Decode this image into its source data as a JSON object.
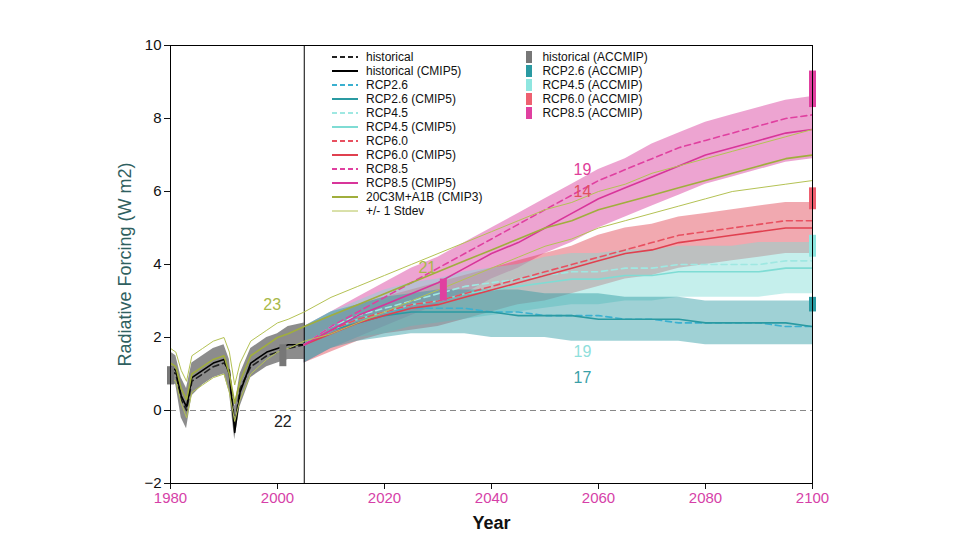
{
  "chart_data": {
    "type": "line",
    "x_label": "Year",
    "y_label": "Radiative Forcing (W m2)",
    "xlim": [
      1980,
      2100
    ],
    "xticks": [
      1980,
      2000,
      2020,
      2040,
      2060,
      2080,
      2100
    ],
    "ylim": [
      -2,
      10
    ],
    "yticks": [
      -2,
      0,
      2,
      4,
      6,
      8,
      10
    ],
    "grid": false,
    "legend": "top-left",
    "reference_lines": {
      "x": [
        2005
      ],
      "y": [
        0
      ]
    },
    "x": [
      1980,
      1981,
      1982,
      1983,
      1984,
      1986,
      1988,
      1990,
      1991,
      1992,
      1993,
      1995,
      1998,
      2000,
      2002,
      2005,
      2010,
      2015,
      2020,
      2025,
      2030,
      2035,
      2040,
      2045,
      2050,
      2055,
      2060,
      2065,
      2070,
      2075,
      2080,
      2085,
      2090,
      2095,
      2100
    ],
    "series": [
      {
        "name": "historical",
        "color": "#222222",
        "line_style": "dashed",
        "values": [
          1.1,
          1.0,
          0.3,
          0.0,
          0.8,
          1.0,
          1.2,
          1.3,
          1.1,
          -0.4,
          0.6,
          1.2,
          1.5,
          1.6,
          1.7,
          1.8,
          null,
          null,
          null,
          null,
          null,
          null,
          null,
          null,
          null,
          null,
          null,
          null,
          null,
          null,
          null,
          null,
          null,
          null,
          null
        ]
      },
      {
        "name": "historical (CMIP5)",
        "color": "#000000",
        "line_style": "solid",
        "values": [
          1.2,
          1.1,
          0.4,
          0.1,
          0.9,
          1.1,
          1.3,
          1.4,
          1.0,
          -0.6,
          0.5,
          1.3,
          1.6,
          1.7,
          1.8,
          1.8,
          null,
          null,
          null,
          null,
          null,
          null,
          null,
          null,
          null,
          null,
          null,
          null,
          null,
          null,
          null,
          null,
          null,
          null,
          null
        ],
        "lower": [
          0.8,
          0.7,
          -0.2,
          -0.5,
          0.4,
          0.7,
          0.9,
          1.0,
          0.5,
          -0.8,
          0.1,
          0.9,
          1.2,
          1.3,
          1.4,
          1.4,
          null,
          null,
          null,
          null,
          null,
          null,
          null,
          null,
          null,
          null,
          null,
          null,
          null,
          null,
          null,
          null,
          null,
          null,
          null
        ],
        "upper": [
          1.6,
          1.5,
          0.9,
          0.6,
          1.3,
          1.5,
          1.7,
          1.8,
          1.4,
          0.1,
          1.0,
          1.7,
          2.0,
          2.1,
          2.3,
          2.4,
          null,
          null,
          null,
          null,
          null,
          null,
          null,
          null,
          null,
          null,
          null,
          null,
          null,
          null,
          null,
          null,
          null,
          null,
          null
        ]
      },
      {
        "name": "RCP2.6",
        "color": "#3ab0d0",
        "line_style": "dashed",
        "values": [
          null,
          null,
          null,
          null,
          null,
          null,
          null,
          null,
          null,
          null,
          null,
          null,
          null,
          null,
          null,
          1.8,
          2.3,
          2.5,
          2.7,
          2.8,
          2.8,
          2.8,
          2.7,
          2.7,
          2.6,
          2.6,
          2.6,
          2.5,
          2.5,
          2.4,
          2.4,
          2.4,
          2.4,
          2.3,
          2.3
        ]
      },
      {
        "name": "RCP2.6 (CMIP5)",
        "color": "#2a9aa2",
        "line_style": "solid",
        "values": [
          null,
          null,
          null,
          null,
          null,
          null,
          null,
          null,
          null,
          null,
          null,
          null,
          null,
          null,
          null,
          1.8,
          2.2,
          2.4,
          2.6,
          2.7,
          2.7,
          2.7,
          2.7,
          2.6,
          2.6,
          2.6,
          2.5,
          2.5,
          2.5,
          2.5,
          2.4,
          2.4,
          2.4,
          2.4,
          2.3
        ],
        "lower": [
          null,
          null,
          null,
          null,
          null,
          null,
          null,
          null,
          null,
          null,
          null,
          null,
          null,
          null,
          null,
          1.3,
          1.7,
          1.9,
          2.0,
          2.1,
          2.1,
          2.1,
          2.0,
          2.0,
          2.0,
          1.9,
          1.9,
          1.9,
          1.9,
          1.9,
          1.8,
          1.8,
          1.8,
          1.8,
          1.8
        ],
        "upper": [
          null,
          null,
          null,
          null,
          null,
          null,
          null,
          null,
          null,
          null,
          null,
          null,
          null,
          null,
          null,
          2.3,
          2.7,
          2.9,
          3.1,
          3.2,
          3.3,
          3.3,
          3.3,
          3.3,
          3.2,
          3.2,
          3.2,
          3.1,
          3.1,
          3.1,
          3.0,
          3.0,
          3.0,
          3.0,
          3.0
        ]
      },
      {
        "name": "RCP4.5",
        "color": "#9fe8e2",
        "line_style": "dashed",
        "values": [
          null,
          null,
          null,
          null,
          null,
          null,
          null,
          null,
          null,
          null,
          null,
          null,
          null,
          null,
          null,
          1.8,
          2.3,
          2.6,
          2.8,
          3.0,
          3.2,
          3.4,
          3.5,
          3.6,
          3.7,
          3.8,
          3.8,
          3.9,
          3.9,
          4.0,
          4.0,
          4.0,
          4.0,
          4.1,
          4.1
        ]
      },
      {
        "name": "RCP4.5 (CMIP5)",
        "color": "#7fdcd4",
        "line_style": "solid",
        "values": [
          null,
          null,
          null,
          null,
          null,
          null,
          null,
          null,
          null,
          null,
          null,
          null,
          null,
          null,
          null,
          1.8,
          2.2,
          2.5,
          2.7,
          2.9,
          3.0,
          3.2,
          3.3,
          3.4,
          3.5,
          3.6,
          3.6,
          3.7,
          3.7,
          3.8,
          3.8,
          3.8,
          3.8,
          3.9,
          3.9
        ],
        "lower": [
          null,
          null,
          null,
          null,
          null,
          null,
          null,
          null,
          null,
          null,
          null,
          null,
          null,
          null,
          null,
          1.3,
          1.7,
          2.0,
          2.1,
          2.3,
          2.4,
          2.5,
          2.6,
          2.7,
          2.8,
          2.9,
          2.9,
          3.0,
          3.0,
          3.1,
          3.1,
          3.1,
          3.1,
          3.2,
          3.2
        ],
        "upper": [
          null,
          null,
          null,
          null,
          null,
          null,
          null,
          null,
          null,
          null,
          null,
          null,
          null,
          null,
          null,
          2.3,
          2.7,
          3.0,
          3.3,
          3.5,
          3.6,
          3.8,
          3.9,
          4.0,
          4.2,
          4.3,
          4.3,
          4.4,
          4.4,
          4.5,
          4.5,
          4.5,
          4.6,
          4.6,
          4.6
        ]
      },
      {
        "name": "RCP6.0",
        "color": "#e85060",
        "line_style": "dashed",
        "values": [
          null,
          null,
          null,
          null,
          null,
          null,
          null,
          null,
          null,
          null,
          null,
          null,
          null,
          null,
          null,
          1.8,
          2.2,
          2.5,
          2.7,
          2.9,
          3.0,
          3.2,
          3.4,
          3.6,
          3.8,
          4.0,
          4.2,
          4.4,
          4.6,
          4.8,
          4.9,
          5.0,
          5.1,
          5.2,
          5.2
        ]
      },
      {
        "name": "RCP6.0 (CMIP5)",
        "color": "#e0404f",
        "line_style": "solid",
        "values": [
          null,
          null,
          null,
          null,
          null,
          null,
          null,
          null,
          null,
          null,
          null,
          null,
          null,
          null,
          null,
          1.8,
          2.1,
          2.4,
          2.6,
          2.8,
          2.9,
          3.1,
          3.3,
          3.5,
          3.7,
          3.9,
          4.1,
          4.3,
          4.4,
          4.6,
          4.7,
          4.8,
          4.9,
          5.0,
          5.0
        ],
        "lower": [
          null,
          null,
          null,
          null,
          null,
          null,
          null,
          null,
          null,
          null,
          null,
          null,
          null,
          null,
          null,
          1.3,
          1.6,
          1.9,
          2.1,
          2.2,
          2.3,
          2.5,
          2.7,
          2.9,
          3.0,
          3.2,
          3.4,
          3.6,
          3.7,
          3.9,
          4.0,
          4.1,
          4.2,
          4.3,
          4.3
        ],
        "upper": [
          null,
          null,
          null,
          null,
          null,
          null,
          null,
          null,
          null,
          null,
          null,
          null,
          null,
          null,
          null,
          2.3,
          2.6,
          2.9,
          3.1,
          3.3,
          3.5,
          3.7,
          3.9,
          4.1,
          4.3,
          4.5,
          4.8,
          5.0,
          5.1,
          5.3,
          5.4,
          5.5,
          5.6,
          5.7,
          5.7
        ]
      },
      {
        "name": "RCP8.5",
        "color": "#e040a0",
        "line_style": "dashed",
        "values": [
          null,
          null,
          null,
          null,
          null,
          null,
          null,
          null,
          null,
          null,
          null,
          null,
          null,
          null,
          null,
          1.8,
          2.3,
          2.7,
          3.1,
          3.5,
          3.9,
          4.3,
          4.7,
          5.1,
          5.5,
          5.9,
          6.3,
          6.6,
          6.9,
          7.2,
          7.4,
          7.6,
          7.8,
          8.0,
          8.1
        ]
      },
      {
        "name": "RCP8.5 (CMIP5)",
        "color": "#d8359a",
        "line_style": "solid",
        "values": [
          null,
          null,
          null,
          null,
          null,
          null,
          null,
          null,
          null,
          null,
          null,
          null,
          null,
          null,
          null,
          1.8,
          2.2,
          2.6,
          2.9,
          3.2,
          3.5,
          3.9,
          4.3,
          4.6,
          5.0,
          5.4,
          5.8,
          6.1,
          6.4,
          6.7,
          7.0,
          7.2,
          7.4,
          7.6,
          7.7
        ],
        "lower": [
          null,
          null,
          null,
          null,
          null,
          null,
          null,
          null,
          null,
          null,
          null,
          null,
          null,
          null,
          null,
          1.3,
          1.7,
          2.0,
          2.3,
          2.6,
          2.9,
          3.2,
          3.6,
          3.9,
          4.3,
          4.6,
          5.0,
          5.3,
          5.6,
          5.9,
          6.2,
          6.4,
          6.6,
          6.8,
          6.9
        ],
        "upper": [
          null,
          null,
          null,
          null,
          null,
          null,
          null,
          null,
          null,
          null,
          null,
          null,
          null,
          null,
          null,
          2.3,
          2.7,
          3.1,
          3.5,
          3.9,
          4.2,
          4.6,
          5.0,
          5.4,
          5.8,
          6.2,
          6.6,
          6.9,
          7.3,
          7.6,
          7.9,
          8.1,
          8.3,
          8.5,
          8.6
        ]
      },
      {
        "name": "20C3M+A1B (CMIP3)",
        "color": "#a0ae3c",
        "line_style": "solid",
        "values": [
          1.3,
          1.2,
          0.6,
          0.3,
          1.0,
          1.2,
          1.4,
          1.5,
          1.0,
          0.2,
          0.8,
          1.5,
          1.8,
          2.0,
          2.1,
          2.3,
          2.6,
          2.9,
          3.2,
          3.5,
          3.8,
          4.1,
          4.4,
          4.7,
          5.0,
          5.2,
          5.5,
          5.7,
          5.9,
          6.1,
          6.3,
          6.5,
          6.7,
          6.9,
          7.0
        ]
      },
      {
        "name": "+/- 1 Stdev",
        "color": "#b4c254",
        "type": "range_lines",
        "line_style": "solid",
        "lower": [
          0.9,
          0.8,
          0.2,
          -0.2,
          0.5,
          0.7,
          0.9,
          1.0,
          0.5,
          -0.3,
          0.3,
          1.0,
          1.4,
          1.6,
          1.7,
          1.9,
          2.1,
          2.4,
          2.7,
          3.0,
          3.3,
          3.6,
          3.9,
          4.2,
          4.5,
          4.7,
          5.0,
          5.2,
          5.4,
          5.6,
          5.8,
          6.0,
          6.1,
          6.2,
          6.3
        ],
        "upper": [
          1.7,
          1.6,
          1.1,
          0.8,
          1.5,
          1.7,
          1.9,
          2.0,
          1.6,
          0.7,
          1.3,
          1.9,
          2.2,
          2.4,
          2.5,
          2.7,
          3.1,
          3.4,
          3.7,
          4.0,
          4.3,
          4.6,
          4.9,
          5.2,
          5.5,
          5.7,
          6.0,
          6.2,
          6.5,
          6.7,
          6.9,
          7.1,
          7.3,
          7.5,
          7.7
        ]
      }
    ],
    "accmip": [
      {
        "name": "historical (ACCMIP)",
        "color": "#777777",
        "bars": [
          {
            "x": 1980,
            "low": 0.7,
            "high": 1.2
          },
          {
            "x": 2001,
            "low": 1.2,
            "high": 1.8
          }
        ]
      },
      {
        "name": "RCP2.6 (ACCMIP)",
        "color": "#2a9aa2",
        "bars": [
          {
            "x": 2100,
            "low": 2.7,
            "high": 3.1
          }
        ]
      },
      {
        "name": "RCP4.5 (ACCMIP)",
        "color": "#8fe6e0",
        "bars": [
          {
            "x": 2100,
            "low": 4.2,
            "high": 4.8
          }
        ]
      },
      {
        "name": "RCP6.0 (ACCMIP)",
        "color": "#ee6070",
        "bars": [
          {
            "x": 2100,
            "low": 5.5,
            "high": 6.1
          }
        ]
      },
      {
        "name": "RCP8.5 (ACCMIP)",
        "color": "#e040a0",
        "bars": [
          {
            "x": 2031,
            "low": 3.0,
            "high": 3.6
          },
          {
            "x": 2100,
            "low": 8.3,
            "high": 9.3
          }
        ]
      }
    ],
    "annotations": [
      {
        "text": "23",
        "x": 1999,
        "y": 2.9,
        "color": "#a8b848"
      },
      {
        "text": "22",
        "x": 2001,
        "y": -0.3,
        "color": "#222222"
      },
      {
        "text": "21",
        "x": 2028,
        "y": 3.9,
        "color": "#a8b848"
      },
      {
        "text": "19",
        "x": 2057,
        "y": 6.6,
        "color": "#e0409a"
      },
      {
        "text": "14",
        "x": 2057,
        "y": 6.0,
        "color": "#e05060"
      },
      {
        "text": "19",
        "x": 2057,
        "y": 1.6,
        "color": "#8fe0dc"
      },
      {
        "text": "17",
        "x": 2057,
        "y": 0.9,
        "color": "#3aa0a8"
      }
    ]
  }
}
